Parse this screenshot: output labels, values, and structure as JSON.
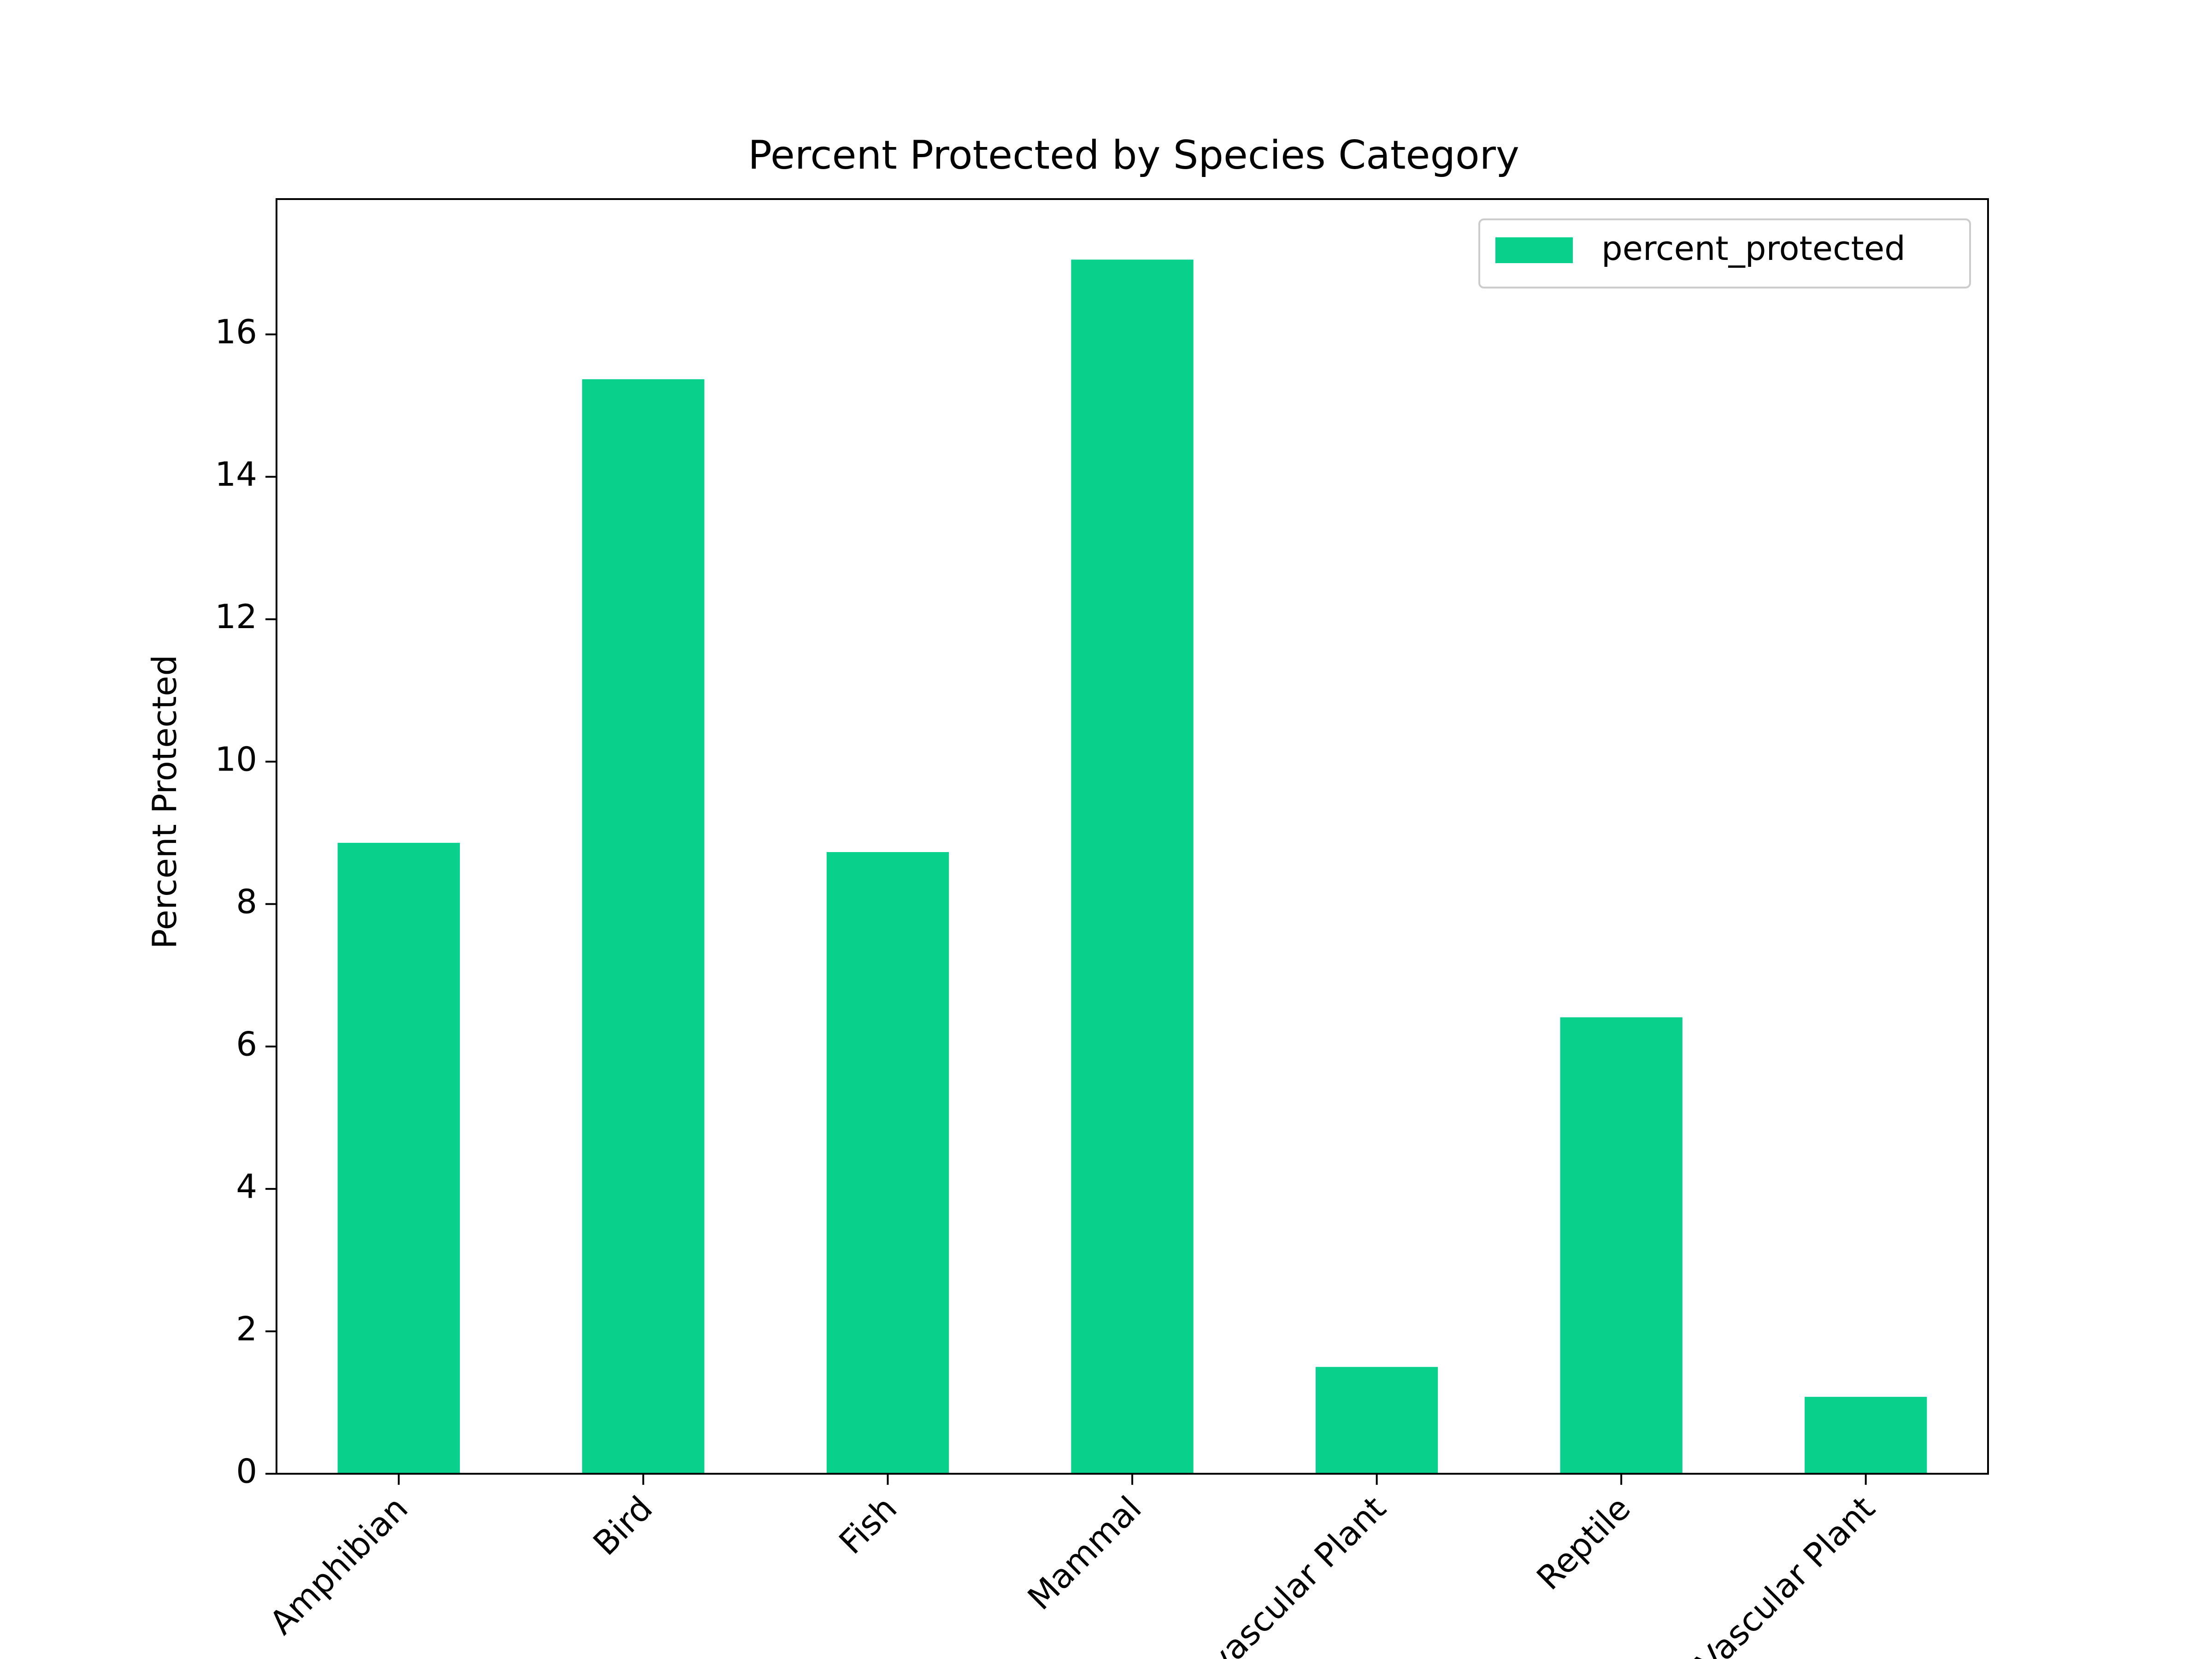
{
  "chart_data": {
    "type": "bar",
    "title": "Percent Protected by Species Category",
    "xlabel": "",
    "ylabel": "Percent Protected",
    "categories": [
      "Amphibian",
      "Bird",
      "Fish",
      "Mammal",
      "Nonvascular Plant",
      "Reptile",
      "Vascular Plant"
    ],
    "series": [
      {
        "name": "percent_protected",
        "values": [
          8.86,
          15.37,
          8.73,
          17.05,
          1.5,
          6.41,
          1.08
        ]
      }
    ],
    "ylim": [
      0,
      17.9
    ],
    "yticks": [
      0,
      2,
      4,
      6,
      8,
      10,
      12,
      14,
      16
    ],
    "grid": false,
    "legend_position": "top-right",
    "bar_color": "#08d18b",
    "axis_color": "#000000"
  }
}
